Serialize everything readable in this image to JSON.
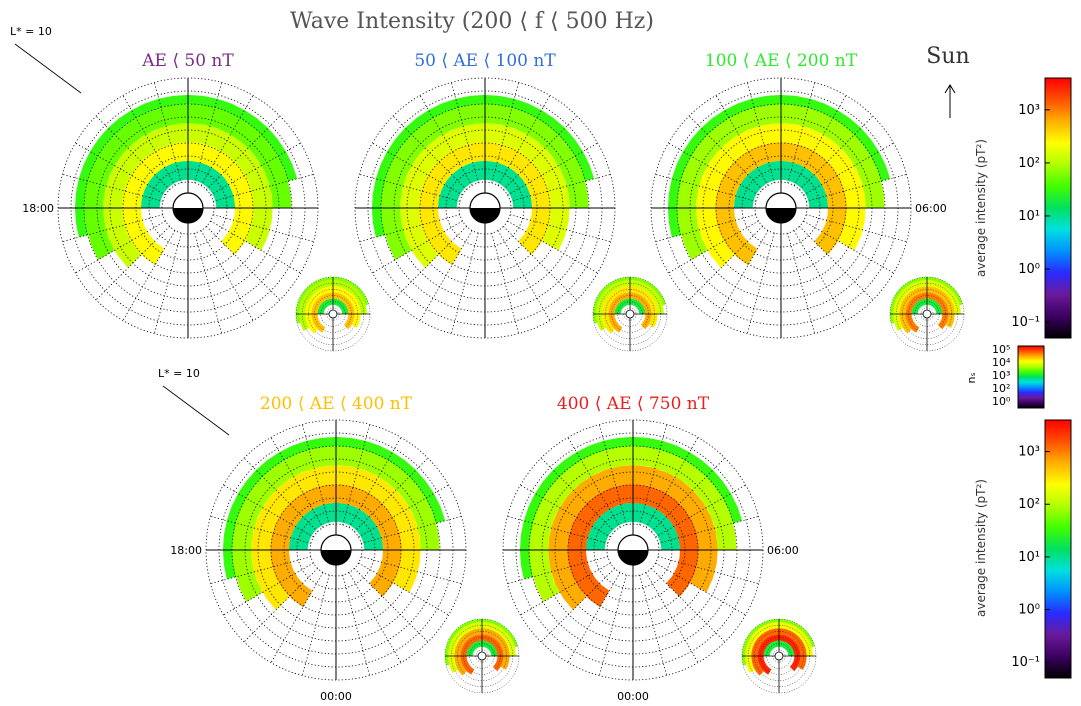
{
  "title": "Wave Intensity (200 ⟨ f ⟨ 500 Hz)",
  "sun_label": "Sun",
  "lstar_label": "L* = 10",
  "time_labels": {
    "dusk": "18:00",
    "dawn": "06:00",
    "midnight": "00:00"
  },
  "colorbar": {
    "label": "average intensity (pT²)",
    "ticks": [
      "10⁻¹",
      "10⁰",
      "10¹",
      "10²",
      "10³"
    ],
    "tick_exponents": [
      -1,
      0,
      1,
      2,
      3
    ],
    "log_range": [
      -1.3,
      3.6
    ],
    "colors": [
      "#000000",
      "#3b0060",
      "#6a1a9a",
      "#2a2aff",
      "#0090ff",
      "#00e0e0",
      "#00e060",
      "#40ff00",
      "#b0ff00",
      "#ffff00",
      "#ffb000",
      "#ff5000",
      "#ff0000"
    ]
  },
  "ns_colorbar": {
    "label": "nₛ",
    "ticks": [
      "10⁰",
      "10²",
      "10³",
      "10⁴",
      "10⁵"
    ]
  },
  "chart_data": [
    {
      "type": "heatmap",
      "projection": "polar-mlt-lstar",
      "title": "AE ⟨ 50 nT",
      "title_color": "#7b2a8a",
      "lstar_max": 10,
      "show_lstar_label": true,
      "show_dusk_label": true,
      "show_dawn_label": false,
      "show_midnight_label": false,
      "rings": [
        {
          "lstar_range": [
            1.5,
            2.5
          ],
          "mlt_range": [
            -6,
            6
          ],
          "log_intensity": 1.0
        },
        {
          "lstar_range": [
            2.5,
            3.5
          ],
          "mlt_range": [
            -10,
            9
          ],
          "log_intensity": 2.4
        },
        {
          "lstar_range": [
            3.5,
            4.5
          ],
          "mlt_range": [
            -9,
            8
          ],
          "log_intensity": 2.1
        },
        {
          "lstar_range": [
            4.5,
            5.5
          ],
          "mlt_range": [
            -8,
            6
          ],
          "log_intensity": 1.7
        },
        {
          "lstar_range": [
            5.5,
            6.0
          ],
          "mlt_range": [
            -7,
            5
          ],
          "log_intensity": 1.5
        }
      ]
    },
    {
      "type": "heatmap",
      "projection": "polar-mlt-lstar",
      "title": "50 ⟨ AE ⟨ 100 nT",
      "title_color": "#2f6fd8",
      "lstar_max": 10,
      "show_lstar_label": false,
      "show_dusk_label": false,
      "show_dawn_label": false,
      "show_midnight_label": false,
      "rings": [
        {
          "lstar_range": [
            1.5,
            2.5
          ],
          "mlt_range": [
            -6,
            6
          ],
          "log_intensity": 1.0
        },
        {
          "lstar_range": [
            2.5,
            3.5
          ],
          "mlt_range": [
            -10,
            9
          ],
          "log_intensity": 2.5
        },
        {
          "lstar_range": [
            3.5,
            4.5
          ],
          "mlt_range": [
            -9,
            8
          ],
          "log_intensity": 2.2
        },
        {
          "lstar_range": [
            4.5,
            5.5
          ],
          "mlt_range": [
            -8,
            6
          ],
          "log_intensity": 1.8
        },
        {
          "lstar_range": [
            5.5,
            6.0
          ],
          "mlt_range": [
            -7,
            5
          ],
          "log_intensity": 1.5
        }
      ]
    },
    {
      "type": "heatmap",
      "projection": "polar-mlt-lstar",
      "title": "100 ⟨ AE ⟨ 200 nT",
      "title_color": "#2ee82e",
      "lstar_max": 10,
      "show_lstar_label": false,
      "show_dusk_label": false,
      "show_dawn_label": true,
      "show_midnight_label": false,
      "rings": [
        {
          "lstar_range": [
            1.5,
            2.5
          ],
          "mlt_range": [
            -6,
            6
          ],
          "log_intensity": 1.0
        },
        {
          "lstar_range": [
            2.5,
            3.5
          ],
          "mlt_range": [
            -10,
            9
          ],
          "log_intensity": 2.7
        },
        {
          "lstar_range": [
            3.5,
            4.5
          ],
          "mlt_range": [
            -9,
            8
          ],
          "log_intensity": 2.4
        },
        {
          "lstar_range": [
            4.5,
            5.5
          ],
          "mlt_range": [
            -8,
            6
          ],
          "log_intensity": 1.9
        },
        {
          "lstar_range": [
            5.5,
            6.0
          ],
          "mlt_range": [
            -7,
            5
          ],
          "log_intensity": 1.5
        }
      ]
    },
    {
      "type": "heatmap",
      "projection": "polar-mlt-lstar",
      "title": "200 ⟨ AE ⟨ 400 nT",
      "title_color": "#ffc000",
      "lstar_max": 10,
      "show_lstar_label": true,
      "show_dusk_label": true,
      "show_dawn_label": false,
      "show_midnight_label": true,
      "rings": [
        {
          "lstar_range": [
            1.5,
            2.5
          ],
          "mlt_range": [
            -6,
            6
          ],
          "log_intensity": 1.0
        },
        {
          "lstar_range": [
            2.5,
            3.5
          ],
          "mlt_range": [
            -10,
            9
          ],
          "log_intensity": 2.8
        },
        {
          "lstar_range": [
            3.5,
            4.5
          ],
          "mlt_range": [
            -9,
            8
          ],
          "log_intensity": 2.5
        },
        {
          "lstar_range": [
            4.5,
            5.5
          ],
          "mlt_range": [
            -8,
            6
          ],
          "log_intensity": 1.9
        },
        {
          "lstar_range": [
            5.5,
            6.0
          ],
          "mlt_range": [
            -7,
            5
          ],
          "log_intensity": 1.5
        }
      ]
    },
    {
      "type": "heatmap",
      "projection": "polar-mlt-lstar",
      "title": "400 ⟨ AE ⟨ 750 nT",
      "title_color": "#ee1c1c",
      "lstar_max": 10,
      "show_lstar_label": false,
      "show_dusk_label": false,
      "show_dawn_label": true,
      "show_midnight_label": true,
      "rings": [
        {
          "lstar_range": [
            1.5,
            2.5
          ],
          "mlt_range": [
            -6,
            6
          ],
          "log_intensity": 1.0
        },
        {
          "lstar_range": [
            2.5,
            3.5
          ],
          "mlt_range": [
            -10,
            9
          ],
          "log_intensity": 3.1
        },
        {
          "lstar_range": [
            3.5,
            4.5
          ],
          "mlt_range": [
            -9,
            8
          ],
          "log_intensity": 2.8
        },
        {
          "lstar_range": [
            4.5,
            5.5
          ],
          "mlt_range": [
            -8,
            6
          ],
          "log_intensity": 2.0
        },
        {
          "lstar_range": [
            5.5,
            6.0
          ],
          "mlt_range": [
            -7,
            5
          ],
          "log_intensity": 1.5
        }
      ]
    }
  ]
}
